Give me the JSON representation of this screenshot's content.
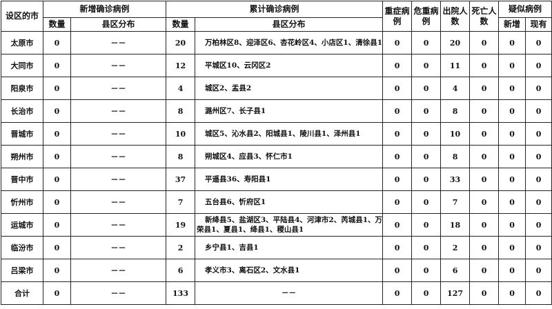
{
  "header": {
    "city": "设区的市",
    "new_confirmed": "新增确诊病例",
    "total_confirmed": "累计确诊病例",
    "severe": "重症病例",
    "critical": "危重病例",
    "discharged": "出院人数",
    "deaths": "死亡人数",
    "suspected": "疑似病例",
    "count": "数量",
    "district": "县区分布",
    "count2": "数量",
    "district2": "县区分布",
    "susp_new": "新增",
    "susp_current": "现有"
  },
  "rows": [
    {
      "city": "太原市",
      "new": "0",
      "new_dist": "－－",
      "total": "20",
      "dist": "万柏林区8、迎泽区6、杏花岭区4、小店区1、清徐县1",
      "severe": "0",
      "critical": "0",
      "discharged": "20",
      "deaths": "0",
      "susp_new": "0",
      "susp_current": "0"
    },
    {
      "city": "大同市",
      "new": "0",
      "new_dist": "－－",
      "total": "12",
      "dist": "平城区10、云冈区2",
      "severe": "0",
      "critical": "0",
      "discharged": "11",
      "deaths": "0",
      "susp_new": "0",
      "susp_current": "0"
    },
    {
      "city": "阳泉市",
      "new": "0",
      "new_dist": "－－",
      "total": "4",
      "dist": "城区2、盂县2",
      "severe": "0",
      "critical": "0",
      "discharged": "4",
      "deaths": "0",
      "susp_new": "0",
      "susp_current": "0"
    },
    {
      "city": "长治市",
      "new": "0",
      "new_dist": "－－",
      "total": "8",
      "dist": "潞州区7、长子县1",
      "severe": "0",
      "critical": "0",
      "discharged": "8",
      "deaths": "0",
      "susp_new": "0",
      "susp_current": "0"
    },
    {
      "city": "晋城市",
      "new": "0",
      "new_dist": "－－",
      "total": "10",
      "dist": "城区5、沁水县2、阳城县1、陵川县1、泽州县1",
      "severe": "0",
      "critical": "0",
      "discharged": "10",
      "deaths": "0",
      "susp_new": "0",
      "susp_current": "0"
    },
    {
      "city": "朔州市",
      "new": "0",
      "new_dist": "－－",
      "total": "8",
      "dist": "朔城区4、应县3、怀仁市1",
      "severe": "0",
      "critical": "0",
      "discharged": "8",
      "deaths": "0",
      "susp_new": "0",
      "susp_current": "0"
    },
    {
      "city": "晋中市",
      "new": "0",
      "new_dist": "－－",
      "total": "37",
      "dist": "平遥县36、寿阳县1",
      "severe": "0",
      "critical": "0",
      "discharged": "33",
      "deaths": "0",
      "susp_new": "0",
      "susp_current": "0"
    },
    {
      "city": "忻州市",
      "new": "0",
      "new_dist": "－－",
      "total": "7",
      "dist": "五台县6、忻府区1",
      "severe": "0",
      "critical": "0",
      "discharged": "7",
      "deaths": "0",
      "susp_new": "0",
      "susp_current": "0"
    },
    {
      "city": "运城市",
      "new": "0",
      "new_dist": "－－",
      "total": "19",
      "dist": "新绛县5、盐湖区3、平陆县4、河津市2、芮城县1、万荣县1、夏县1、绛县1、稷山县1",
      "severe": "0",
      "critical": "0",
      "discharged": "18",
      "deaths": "0",
      "susp_new": "0",
      "susp_current": "0"
    },
    {
      "city": "临汾市",
      "new": "0",
      "new_dist": "－－",
      "total": "2",
      "dist": "乡宁县1、吉县1",
      "severe": "0",
      "critical": "0",
      "discharged": "2",
      "deaths": "0",
      "susp_new": "0",
      "susp_current": "0"
    },
    {
      "city": "吕梁市",
      "new": "0",
      "new_dist": "－－",
      "total": "6",
      "dist": "孝义市3、离石区2、文水县1",
      "severe": "0",
      "critical": "0",
      "discharged": "6",
      "deaths": "0",
      "susp_new": "0",
      "susp_current": "0"
    },
    {
      "city": "合计",
      "new": "0",
      "new_dist": "－－",
      "total": "133",
      "dist": "－－",
      "severe": "0",
      "critical": "0",
      "discharged": "127",
      "deaths": "0",
      "susp_new": "0",
      "susp_current": "0"
    }
  ]
}
